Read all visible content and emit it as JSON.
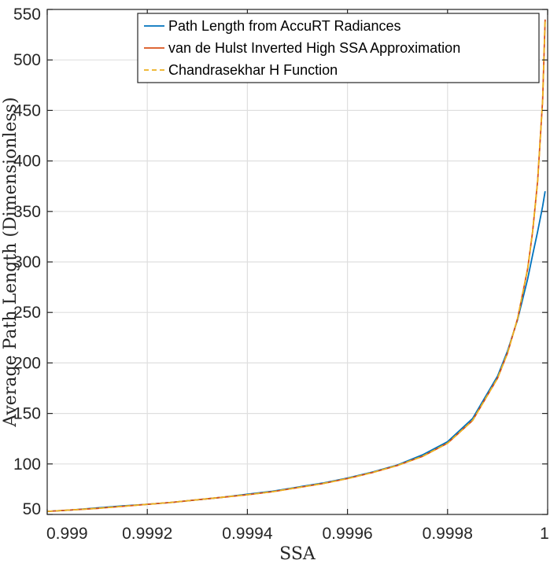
{
  "chart_data": {
    "type": "line",
    "title": "",
    "xlabel": "SSA",
    "ylabel": "Average Path Length (Dimensionless)",
    "xlim": [
      0.999,
      1.0
    ],
    "ylim": [
      50,
      550
    ],
    "xticks": [
      0.999,
      0.9992,
      0.9994,
      0.9996,
      0.9998,
      1.0
    ],
    "xtick_labels": [
      "0.999",
      "0.9992",
      "0.9994",
      "0.9996",
      "0.9998",
      "1"
    ],
    "yticks": [
      50,
      100,
      150,
      200,
      250,
      300,
      350,
      400,
      450,
      500,
      550
    ],
    "ytick_labels": [
      "50",
      "100",
      "150",
      "200",
      "250",
      "300",
      "350",
      "400",
      "450",
      "500",
      "550"
    ],
    "grid": true,
    "legend_position": "top-right",
    "series": [
      {
        "name": "Path Length from AccuRT Radiances",
        "color": "#0072BD",
        "dash": "solid",
        "x": [
          0.999,
          0.99905,
          0.9991,
          0.99915,
          0.9992,
          0.99925,
          0.9993,
          0.99935,
          0.9994,
          0.99945,
          0.9995,
          0.99955,
          0.9996,
          0.99965,
          0.9997,
          0.99975,
          0.9998,
          0.99985,
          0.9999,
          0.99992,
          0.99994,
          0.99996,
          0.99997,
          0.99998,
          0.99999,
          0.999995
        ],
        "y": [
          53,
          54.5,
          56.5,
          58.5,
          60,
          62,
          64.5,
          67,
          70,
          73,
          77,
          81,
          86,
          92,
          99,
          109,
          122,
          145,
          187,
          212,
          243,
          283,
          307,
          330,
          355,
          370
        ]
      },
      {
        "name": "van de Hulst Inverted High SSA Approximation",
        "color": "#D95319",
        "dash": "solid",
        "x": [
          0.999,
          0.99905,
          0.9991,
          0.99915,
          0.9992,
          0.99925,
          0.9993,
          0.99935,
          0.9994,
          0.99945,
          0.9995,
          0.99955,
          0.9996,
          0.99965,
          0.9997,
          0.99975,
          0.9998,
          0.99985,
          0.9999,
          0.99992,
          0.99994,
          0.99996,
          0.99997,
          0.99998,
          0.99999,
          0.999995
        ],
        "y": [
          53,
          54.5,
          56,
          58,
          60,
          62,
          64.5,
          67,
          69.5,
          72.5,
          76.5,
          80.5,
          85.5,
          91.5,
          98.5,
          107.5,
          120.5,
          143,
          185,
          210,
          244,
          293,
          330,
          380,
          460,
          540
        ]
      },
      {
        "name": "Chandrasekhar H Function",
        "color": "#EDB120",
        "dash": "dashed",
        "x": [
          0.999,
          0.99905,
          0.9991,
          0.99915,
          0.9992,
          0.99925,
          0.9993,
          0.99935,
          0.9994,
          0.99945,
          0.9995,
          0.99955,
          0.9996,
          0.99965,
          0.9997,
          0.99975,
          0.9998,
          0.99985,
          0.9999,
          0.99992,
          0.99994,
          0.99996,
          0.99997,
          0.99998,
          0.99999,
          0.999995
        ],
        "y": [
          53,
          54.5,
          56,
          58,
          60,
          62,
          64.5,
          67,
          69.5,
          72.5,
          76.5,
          80.5,
          85.5,
          91.5,
          98.5,
          107.5,
          120.5,
          143,
          185,
          210,
          244,
          293,
          330,
          380,
          460,
          540
        ]
      }
    ]
  }
}
